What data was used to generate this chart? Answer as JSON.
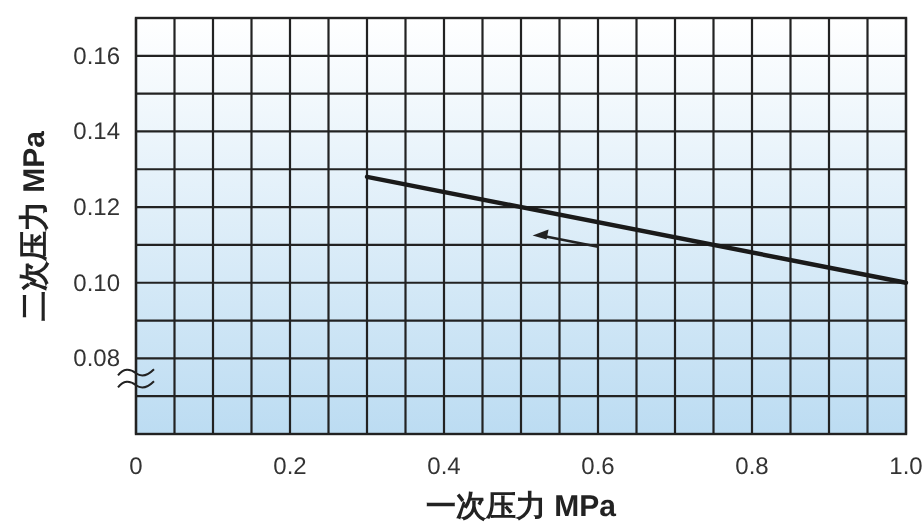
{
  "chart_data": {
    "type": "line",
    "xlabel": "一次压力 MPa",
    "ylabel": "二次压力 MPa",
    "x": [
      0.3,
      1.0
    ],
    "series": [
      {
        "color": "#1a1a1a",
        "values": [
          0.128,
          0.1
        ]
      }
    ],
    "xlim": [
      0,
      1
    ],
    "ylim": [
      0.06,
      0.17
    ],
    "xticks": [
      0,
      {
        "value": 0.05,
        "label": null
      },
      0.2,
      {
        "value": 0.1,
        "label": null
      },
      {
        "value": 0.15,
        "label": null
      },
      {
        "value": 0.25,
        "label": null
      },
      {
        "value": 0.3,
        "label": null
      },
      {
        "value": 0.35,
        "label": null
      },
      0.4,
      {
        "value": 0.45,
        "label": null
      },
      {
        "value": 0.5,
        "label": null
      },
      {
        "value": 0.55,
        "label": null
      },
      0.6,
      {
        "value": 0.65,
        "label": null
      },
      {
        "value": 0.7,
        "label": null
      },
      {
        "value": 0.75,
        "label": null
      },
      0.8,
      {
        "value": 0.85,
        "label": null
      },
      {
        "value": 0.9,
        "label": null
      },
      {
        "value": 0.95,
        "label": null
      },
      {
        "value": 1.0,
        "label": "1.0"
      }
    ],
    "yticks": [
      {
        "value": 0.06,
        "label": null
      },
      {
        "value": 0.07,
        "label": null
      },
      {
        "value": 0.08,
        "label": "0.08"
      },
      {
        "value": 0.09,
        "label": null
      },
      {
        "value": 0.1,
        "label": "0.10"
      },
      {
        "value": 0.11,
        "label": null
      },
      {
        "value": 0.12,
        "label": "0.12"
      },
      {
        "value": 0.13,
        "label": null
      },
      {
        "value": 0.14,
        "label": "0.14"
      },
      {
        "value": 0.15,
        "label": null
      },
      {
        "value": 0.16,
        "label": "0.16"
      },
      {
        "value": 0.17,
        "label": null
      }
    ],
    "grid": true,
    "line_style": "solid",
    "marker": "none"
  }
}
